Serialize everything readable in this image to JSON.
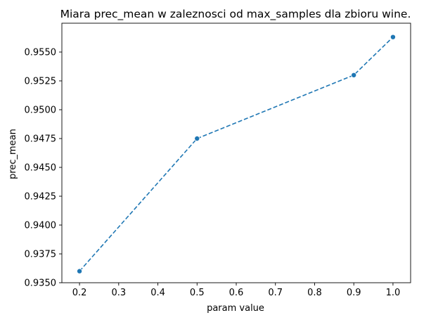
{
  "chart_data": {
    "type": "line",
    "title": "Miara prec_mean w zaleznosci od max_samples dla zbioru wine.",
    "xlabel": "param value",
    "ylabel": "prec_mean",
    "xlim": [
      0.155,
      1.045
    ],
    "ylim": [
      0.935,
      0.9575
    ],
    "xticks": [
      0.2,
      0.3,
      0.4,
      0.5,
      0.6,
      0.7,
      0.8,
      0.9,
      1.0
    ],
    "xtick_labels": [
      "0.2",
      "0.3",
      "0.4",
      "0.5",
      "0.6",
      "0.7",
      "0.8",
      "0.9",
      "1.0"
    ],
    "yticks": [
      0.935,
      0.9375,
      0.94,
      0.9425,
      0.945,
      0.9475,
      0.95,
      0.9525,
      0.955
    ],
    "ytick_labels": [
      "0.9350",
      "0.9375",
      "0.9400",
      "0.9425",
      "0.9450",
      "0.9475",
      "0.9500",
      "0.9525",
      "0.9550"
    ],
    "grid": false,
    "series": [
      {
        "x": [
          0.2,
          0.5,
          0.9,
          1.0
        ],
        "y": [
          0.936,
          0.9475,
          0.953,
          0.9563
        ],
        "color": "#1f77b4",
        "line_style": "dashed",
        "marker": "circle"
      }
    ]
  }
}
